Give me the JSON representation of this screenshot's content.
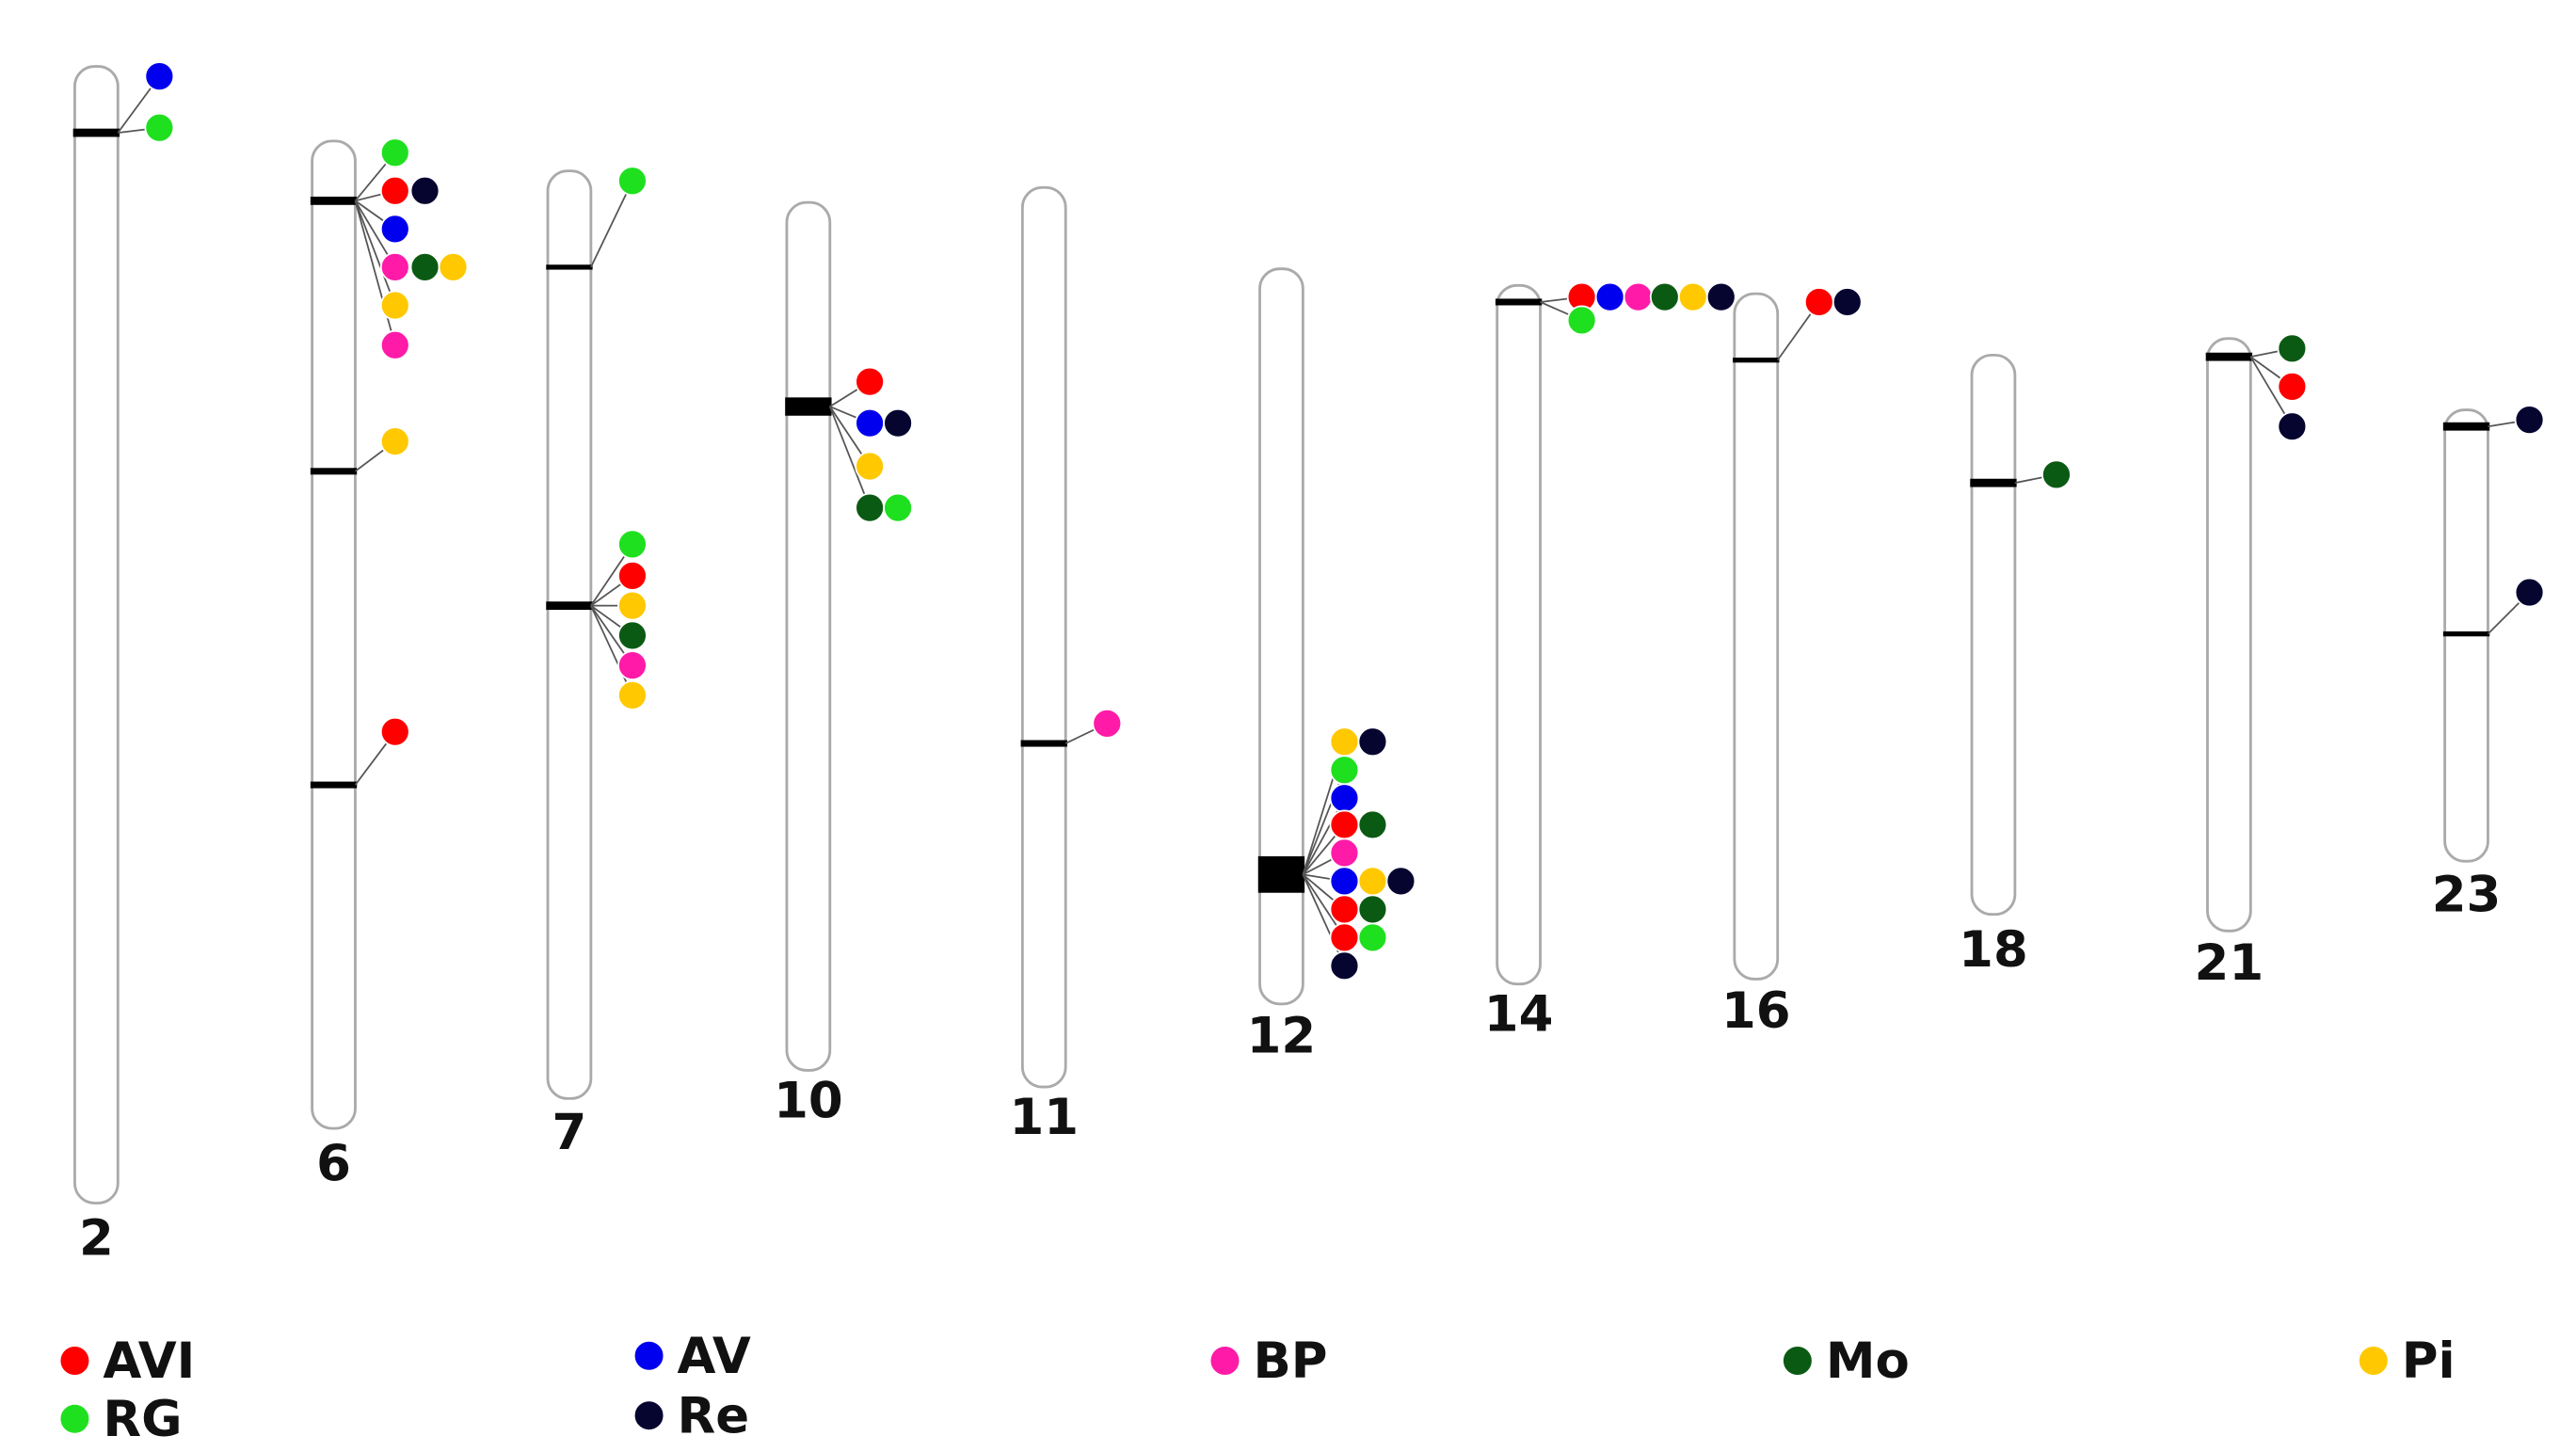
{
  "chromosomes": [
    "2",
    "6",
    "7",
    "10",
    "11",
    "12",
    "14",
    "16",
    "18",
    "21",
    "23"
  ],
  "legend": [
    {
      "label": "AVI",
      "color": "#ff0000"
    },
    {
      "label": "AV",
      "color": "#0000ee"
    },
    {
      "label": "BP",
      "color": "#ff1aa8"
    },
    {
      "label": "Mo",
      "color": "#0b5a14"
    },
    {
      "label": "Pi",
      "color": "#ffc800"
    },
    {
      "label": "RG",
      "color": "#1fe01f"
    },
    {
      "label": "Re",
      "color": "#050530"
    }
  ]
}
